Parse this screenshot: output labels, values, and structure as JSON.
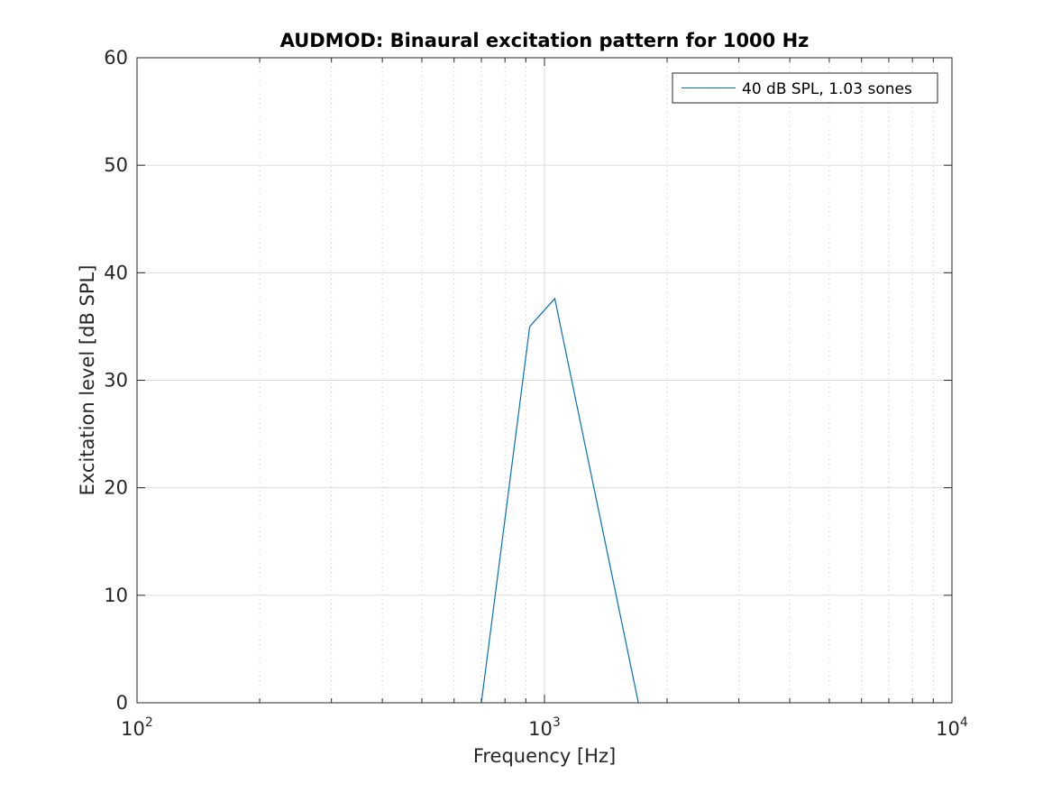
{
  "chart_data": {
    "type": "line",
    "title": "AUDMOD: Binaural excitation pattern for 1000 Hz",
    "xlabel": "Frequency [Hz]",
    "ylabel": "Excitation level [dB SPL]",
    "xscale": "log",
    "xlim": [
      100,
      10000
    ],
    "ylim": [
      0,
      60
    ],
    "x_ticks": [
      {
        "value": 100,
        "base": "10",
        "exp": "2"
      },
      {
        "value": 1000,
        "base": "10",
        "exp": "3"
      },
      {
        "value": 10000,
        "base": "10",
        "exp": "4"
      }
    ],
    "y_ticks": [
      "0",
      "10",
      "20",
      "30",
      "40",
      "50",
      "60"
    ],
    "grid": true,
    "legend_position": "top-right",
    "series": [
      {
        "name": "40 dB SPL, 1.03 sones",
        "color": "#0072bd",
        "x": [
          700,
          920,
          1060,
          1700
        ],
        "y": [
          0,
          35,
          37.6,
          0
        ]
      }
    ]
  }
}
